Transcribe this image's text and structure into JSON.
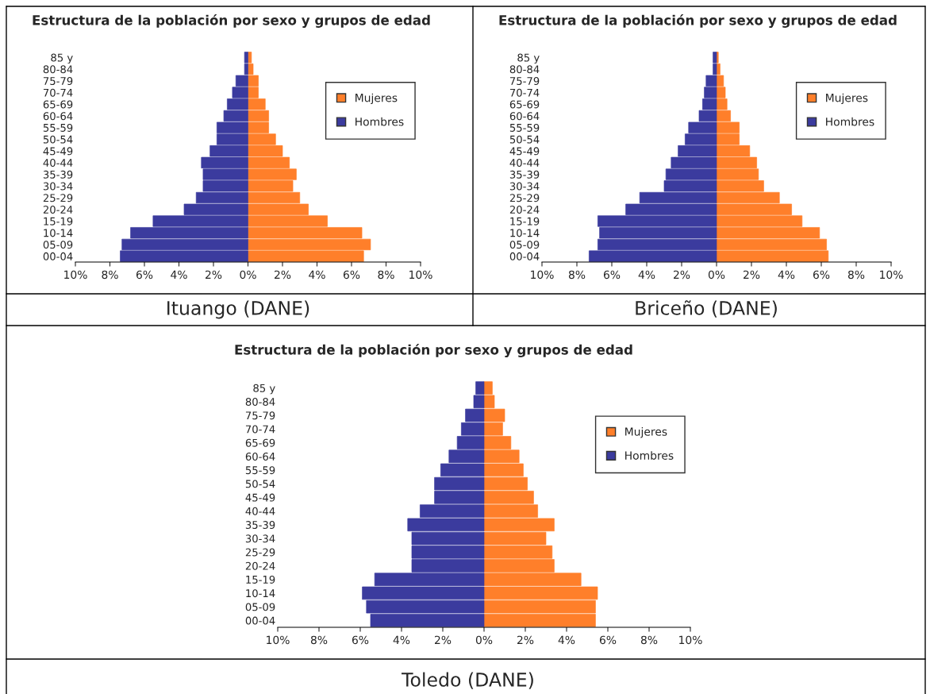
{
  "chart_data": [
    {
      "type": "bar",
      "orientation": "horizontal",
      "stacked": true,
      "title": "Estructura de la población por sexo y grupos de edad",
      "annotations": [
        "Ituango (DANE)"
      ],
      "legend": "top right",
      "categories": [
        "85 y",
        "80-84",
        "75-79",
        "70-74",
        "65-69",
        "60-64",
        "55-59",
        "50-54",
        "45-49",
        "40-44",
        "35-39",
        "30-34",
        "25-29",
        "20-24",
        "15-19",
        "10-14",
        "05-09",
        "00-04"
      ],
      "series": [
        {
          "name": "Mujeres",
          "color": "#ff7f2a",
          "values": [
            0.2,
            0.3,
            0.6,
            0.6,
            1.0,
            1.2,
            1.2,
            1.6,
            2.0,
            2.4,
            2.8,
            2.6,
            3.0,
            3.5,
            4.6,
            6.6,
            7.1,
            6.7
          ]
        },
        {
          "name": "Hombres",
          "color": "#3b3b9e",
          "values": [
            -0.2,
            -0.2,
            -0.7,
            -0.9,
            -1.2,
            -1.4,
            -1.8,
            -1.8,
            -2.2,
            -2.7,
            -2.6,
            -2.6,
            -3.0,
            -3.7,
            -5.5,
            -6.8,
            -7.3,
            -7.4
          ]
        }
      ],
      "xlim": [
        -10,
        10
      ],
      "xticks": [
        {
          "value": -10,
          "label": "10%"
        },
        {
          "value": -8,
          "label": "8%"
        },
        {
          "value": -6,
          "label": "6%"
        },
        {
          "value": -4,
          "label": "4%"
        },
        {
          "value": -2,
          "label": "2%"
        },
        {
          "value": 0,
          "label": "0%"
        },
        {
          "value": 2,
          "label": "2%"
        },
        {
          "value": 4,
          "label": "4%"
        },
        {
          "value": 6,
          "label": "6%"
        },
        {
          "value": 8,
          "label": "8%"
        },
        {
          "value": 10,
          "label": "10%"
        }
      ]
    },
    {
      "type": "bar",
      "orientation": "horizontal",
      "stacked": true,
      "title": "Estructura de la población por sexo y grupos de edad",
      "annotations": [
        "Briceño (DANE)"
      ],
      "legend": "top right",
      "categories": [
        "85 y",
        "80-84",
        "75-79",
        "70-74",
        "65-69",
        "60-64",
        "55-59",
        "50-54",
        "45-49",
        "40-44",
        "35-39",
        "30-34",
        "25-29",
        "20-24",
        "15-19",
        "10-14",
        "05-09",
        "00-04"
      ],
      "series": [
        {
          "name": "Mujeres",
          "color": "#ff7f2a",
          "values": [
            0.1,
            0.2,
            0.4,
            0.5,
            0.6,
            0.8,
            1.3,
            1.3,
            1.9,
            2.3,
            2.4,
            2.7,
            3.6,
            4.3,
            4.9,
            5.9,
            6.3,
            6.4
          ]
        },
        {
          "name": "Hombres",
          "color": "#3b3b9e",
          "values": [
            -0.2,
            -0.2,
            -0.6,
            -0.7,
            -0.8,
            -1.0,
            -1.6,
            -1.8,
            -2.2,
            -2.6,
            -2.9,
            -3.0,
            -4.4,
            -5.2,
            -6.8,
            -6.7,
            -6.8,
            -7.3
          ]
        }
      ],
      "xlim": [
        -10,
        10
      ],
      "xticks": [
        {
          "value": -10,
          "label": "10%"
        },
        {
          "value": -8,
          "label": "8%"
        },
        {
          "value": -6,
          "label": "6%"
        },
        {
          "value": -4,
          "label": "4%"
        },
        {
          "value": -2,
          "label": "2%"
        },
        {
          "value": 0,
          "label": "0%"
        },
        {
          "value": 2,
          "label": "2%"
        },
        {
          "value": 4,
          "label": "4%"
        },
        {
          "value": 6,
          "label": "6%"
        },
        {
          "value": 8,
          "label": "8%"
        },
        {
          "value": 10,
          "label": "10%"
        }
      ]
    },
    {
      "type": "bar",
      "orientation": "horizontal",
      "stacked": true,
      "title": "Estructura de la población por sexo y grupos de edad",
      "annotations": [
        "Toledo (DANE)"
      ],
      "legend": "top right",
      "categories": [
        "85 y",
        "80-84",
        "75-79",
        "70-74",
        "65-69",
        "60-64",
        "55-59",
        "50-54",
        "45-49",
        "40-44",
        "35-39",
        "30-34",
        "25-29",
        "20-24",
        "15-19",
        "10-14",
        "05-09",
        "00-04"
      ],
      "series": [
        {
          "name": "Mujeres",
          "color": "#ff7f2a",
          "values": [
            0.4,
            0.5,
            1.0,
            0.9,
            1.3,
            1.7,
            1.9,
            2.1,
            2.4,
            2.6,
            3.4,
            3.0,
            3.3,
            3.4,
            4.7,
            5.5,
            5.4,
            5.4
          ]
        },
        {
          "name": "Hombres",
          "color": "#3b3b9e",
          "values": [
            -0.4,
            -0.5,
            -0.9,
            -1.1,
            -1.3,
            -1.7,
            -2.1,
            -2.4,
            -2.4,
            -3.1,
            -3.7,
            -3.5,
            -3.5,
            -3.5,
            -5.3,
            -5.9,
            -5.7,
            -5.5
          ]
        }
      ],
      "xlim": [
        -10,
        10
      ],
      "xticks": [
        {
          "value": -10,
          "label": "10%"
        },
        {
          "value": -8,
          "label": "8%"
        },
        {
          "value": -6,
          "label": "6%"
        },
        {
          "value": -4,
          "label": "4%"
        },
        {
          "value": -2,
          "label": "2%"
        },
        {
          "value": 0,
          "label": "0%"
        },
        {
          "value": 2,
          "label": "2%"
        },
        {
          "value": 4,
          "label": "4%"
        },
        {
          "value": 6,
          "label": "6%"
        },
        {
          "value": 8,
          "label": "8%"
        },
        {
          "value": 10,
          "label": "10%"
        }
      ]
    }
  ]
}
